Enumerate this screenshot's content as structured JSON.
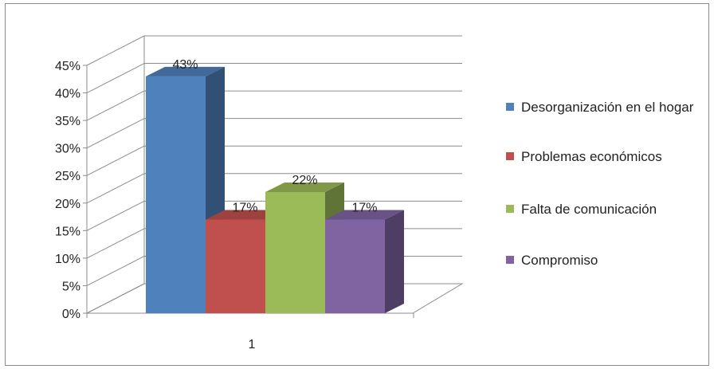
{
  "chart_data": {
    "type": "bar",
    "style": "3d-clustered-column",
    "categories": [
      "1"
    ],
    "series": [
      {
        "name": "Desorganización en el hogar",
        "values": [
          43
        ],
        "label": "43%",
        "color": "#4f81bd"
      },
      {
        "name": "Problemas económicos",
        "values": [
          17
        ],
        "label": "17%",
        "color": "#c0504d"
      },
      {
        "name": "Falta de comunicación",
        "values": [
          22
        ],
        "label": "22%",
        "color": "#9bbb59"
      },
      {
        "name": "Compromiso",
        "values": [
          17
        ],
        "label": "17%",
        "color": "#8064a2"
      }
    ],
    "ylim": [
      0,
      45
    ],
    "yticks": [
      "0%",
      "5%",
      "10%",
      "15%",
      "20%",
      "25%",
      "30%",
      "35%",
      "40%",
      "45%"
    ],
    "grid": true,
    "legend_position": "right"
  }
}
